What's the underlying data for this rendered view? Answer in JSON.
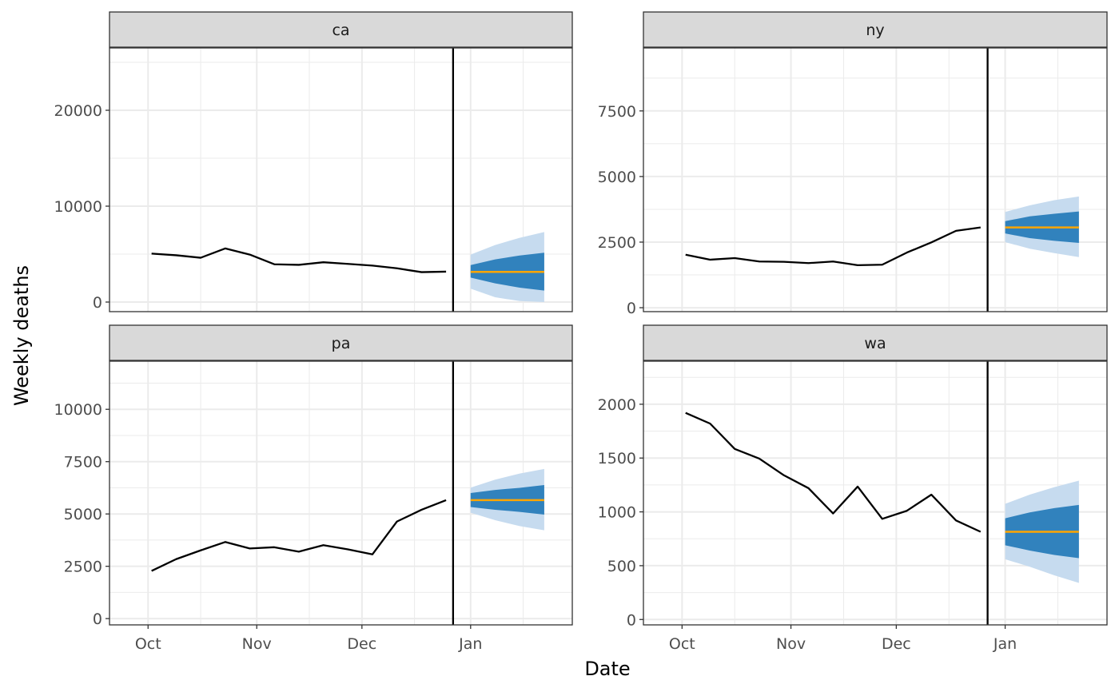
{
  "chart_data": {
    "type": "line",
    "facet_by": "location",
    "xlabel": "Date",
    "ylabel": "Weekly deaths",
    "x_tick_labels": [
      "Oct",
      "Nov",
      "Dec",
      "Jan"
    ],
    "forecast_origin": "2021-12-27",
    "grid": true,
    "scales": "free_y",
    "colors": {
      "observed_line": "#000000",
      "forecast_median": "#ffa500",
      "interval_inner": "#3182bd",
      "interval_outer": "#c6dbef",
      "strip_background": "#d9d9d9",
      "panel_border": "#333333",
      "grid": "#ebebeb"
    },
    "panels": [
      {
        "label": "ca",
        "ylim": [
          -1000,
          26500
        ],
        "y_ticks": [
          0,
          10000,
          20000
        ],
        "y_tick_labels": [
          "0",
          "10000",
          "20000"
        ],
        "observed": {
          "x": [
            "2021-10-02",
            "2021-10-09",
            "2021-10-16",
            "2021-10-23",
            "2021-10-30",
            "2021-11-06",
            "2021-11-13",
            "2021-11-20",
            "2021-11-27",
            "2021-12-04",
            "2021-12-11",
            "2021-12-18",
            "2021-12-25"
          ],
          "y": [
            5050,
            4880,
            4620,
            5590,
            4950,
            3940,
            3880,
            4150,
            3980,
            3800,
            3520,
            3120,
            3170
          ]
        },
        "forecast": {
          "x": [
            "2022-01-01",
            "2022-01-08",
            "2022-01-15",
            "2022-01-22"
          ],
          "median": [
            3150,
            3150,
            3150,
            3150
          ],
          "lower_inner": [
            2550,
            1950,
            1500,
            1200
          ],
          "upper_inner": [
            3850,
            4450,
            4850,
            5150
          ],
          "lower_outer": [
            1400,
            500,
            100,
            0
          ],
          "upper_outer": [
            4950,
            5950,
            6700,
            7300
          ]
        }
      },
      {
        "label": "ny",
        "ylim": [
          -150,
          9900
        ],
        "y_ticks": [
          0,
          2500,
          5000,
          7500
        ],
        "y_tick_labels": [
          "0",
          "2500",
          "5000",
          "7500"
        ],
        "observed": {
          "x": [
            "2021-10-02",
            "2021-10-09",
            "2021-10-16",
            "2021-10-23",
            "2021-10-30",
            "2021-11-06",
            "2021-11-13",
            "2021-11-20",
            "2021-11-27",
            "2021-12-04",
            "2021-12-11",
            "2021-12-18",
            "2021-12-25"
          ],
          "y": [
            2020,
            1830,
            1890,
            1760,
            1750,
            1700,
            1760,
            1620,
            1640,
            2100,
            2490,
            2930,
            3060
          ]
        },
        "forecast": {
          "x": [
            "2022-01-01",
            "2022-01-08",
            "2022-01-15",
            "2022-01-22"
          ],
          "median": [
            3060,
            3060,
            3060,
            3060
          ],
          "lower_inner": [
            2830,
            2650,
            2550,
            2470
          ],
          "upper_inner": [
            3300,
            3480,
            3580,
            3670
          ],
          "lower_outer": [
            2500,
            2250,
            2080,
            1930
          ],
          "upper_outer": [
            3650,
            3900,
            4100,
            4240
          ]
        }
      },
      {
        "label": "pa",
        "ylim": [
          -300,
          12300
        ],
        "y_ticks": [
          0,
          2500,
          5000,
          7500,
          10000
        ],
        "y_tick_labels": [
          "0",
          "2500",
          "5000",
          "7500",
          "10000"
        ],
        "observed": {
          "x": [
            "2021-10-02",
            "2021-10-09",
            "2021-10-16",
            "2021-10-23",
            "2021-10-30",
            "2021-11-06",
            "2021-11-13",
            "2021-11-20",
            "2021-11-27",
            "2021-12-04",
            "2021-12-11",
            "2021-12-18",
            "2021-12-25"
          ],
          "y": [
            2280,
            2840,
            3260,
            3660,
            3350,
            3410,
            3200,
            3510,
            3310,
            3070,
            4640,
            5200,
            5660
          ]
        },
        "forecast": {
          "x": [
            "2022-01-01",
            "2022-01-08",
            "2022-01-15",
            "2022-01-22"
          ],
          "median": [
            5660,
            5660,
            5660,
            5660
          ],
          "lower_inner": [
            5330,
            5200,
            5100,
            4970
          ],
          "upper_inner": [
            6000,
            6150,
            6250,
            6380
          ],
          "lower_outer": [
            5060,
            4700,
            4420,
            4220
          ],
          "upper_outer": [
            6260,
            6640,
            6930,
            7150
          ]
        }
      },
      {
        "label": "wa",
        "ylim": [
          -50,
          2400
        ],
        "y_ticks": [
          0,
          500,
          1000,
          1500,
          2000
        ],
        "y_tick_labels": [
          "0",
          "500",
          "1000",
          "1500",
          "2000"
        ],
        "observed": {
          "x": [
            "2021-10-02",
            "2021-10-09",
            "2021-10-16",
            "2021-10-23",
            "2021-10-30",
            "2021-11-06",
            "2021-11-13",
            "2021-11-20",
            "2021-11-27",
            "2021-12-04",
            "2021-12-11",
            "2021-12-18",
            "2021-12-25"
          ],
          "y": [
            1920,
            1820,
            1585,
            1495,
            1340,
            1220,
            985,
            1235,
            935,
            1010,
            1160,
            920,
            815
          ]
        },
        "forecast": {
          "x": [
            "2022-01-01",
            "2022-01-08",
            "2022-01-15",
            "2022-01-22"
          ],
          "median": [
            815,
            815,
            815,
            815
          ],
          "lower_inner": [
            690,
            640,
            600,
            570
          ],
          "upper_inner": [
            940,
            995,
            1035,
            1065
          ],
          "lower_outer": [
            560,
            490,
            410,
            340
          ],
          "upper_outer": [
            1075,
            1160,
            1230,
            1290
          ]
        }
      }
    ]
  }
}
